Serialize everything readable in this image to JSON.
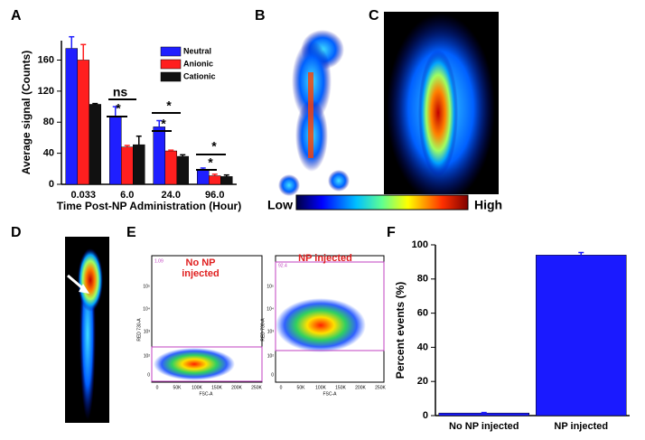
{
  "panel_labels": [
    "A",
    "B",
    "C",
    "D",
    "E",
    "F"
  ],
  "colorbar": {
    "low": "Low",
    "high": "High"
  },
  "flow": {
    "plots": [
      {
        "title": "No NP injected",
        "gate": "1.09"
      },
      {
        "title": "NP injected",
        "gate": "92.4"
      }
    ],
    "y_label": "RED 730-A",
    "x_label": "FSC-A",
    "yticks": [
      "10⁵",
      "10⁴",
      "10³",
      "10²",
      "0"
    ],
    "xticks": [
      "0",
      "50K",
      "100K",
      "150K",
      "200K",
      "250K"
    ]
  },
  "chart_data": [
    {
      "type": "bar",
      "categories": [
        "0.033",
        "6.0",
        "24.0",
        "96.0"
      ],
      "series": [
        {
          "name": "Neutral",
          "color": "#1f1fff",
          "values": [
            175,
            88,
            74,
            19
          ],
          "errors": [
            15,
            12,
            8,
            2
          ]
        },
        {
          "name": "Anionic",
          "color": "#ff1f1f",
          "values": [
            160,
            48,
            43,
            11
          ],
          "errors": [
            20,
            2,
            1,
            2
          ]
        },
        {
          "name": "Cationic",
          "color": "#111111",
          "values": [
            103,
            51,
            36,
            10
          ],
          "errors": [
            1,
            11,
            2,
            2
          ]
        }
      ],
      "ylim": [
        0,
        185
      ],
      "yticks": [
        0,
        40,
        80,
        120,
        160
      ],
      "y_label": "Average signal (Counts)",
      "x_label": "Time Post-NP Administration (Hour)",
      "annotations": [
        "ns",
        "*",
        "*",
        "*",
        "*",
        "*"
      ]
    },
    {
      "type": "bar",
      "categories": [
        "No NP injected",
        "NP injected"
      ],
      "values": [
        1.5,
        94
      ],
      "errors": [
        0.3,
        1.5
      ],
      "color": "#1a1aff",
      "ylim": [
        0,
        100
      ],
      "yticks": [
        0,
        20,
        40,
        60,
        80,
        100
      ],
      "y_label": "Percent events (%)"
    }
  ]
}
